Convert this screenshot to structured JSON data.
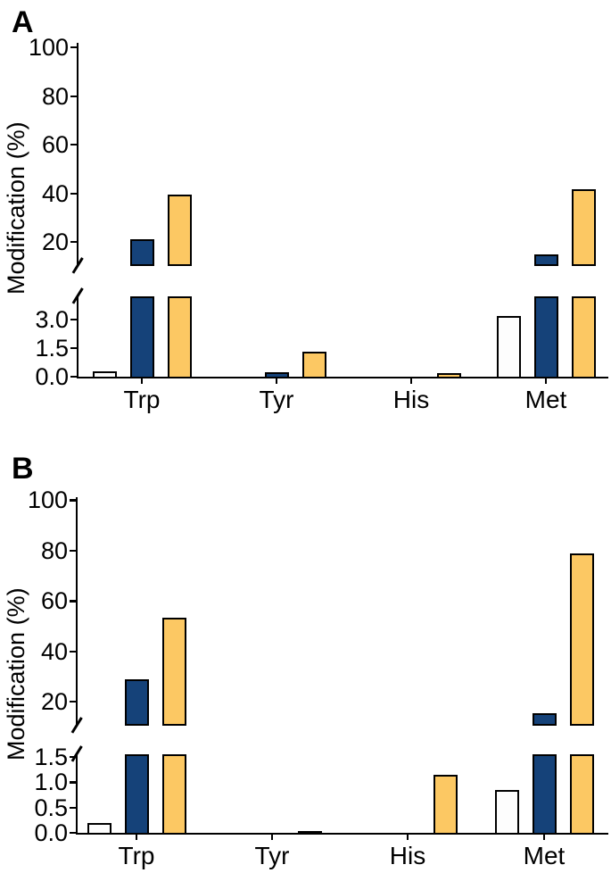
{
  "figure": {
    "panels": [
      {
        "label": "A",
        "y_axis_label": "Modification (%)",
        "upper_tick_labels": [
          "100",
          "80",
          "60",
          "40",
          "20"
        ],
        "lower_tick_labels": [
          "3.0",
          "1.5",
          "0.0"
        ],
        "categories": [
          "Trp",
          "Tyr",
          "His",
          "Met"
        ]
      },
      {
        "label": "B",
        "y_axis_label": "Modification (%)",
        "upper_tick_labels": [
          "100",
          "80",
          "60",
          "40",
          "20"
        ],
        "lower_tick_labels": [
          "1.5",
          "1.0",
          "0.5",
          "0.0"
        ],
        "categories": [
          "Trp",
          "Tyr",
          "His",
          "Met"
        ]
      }
    ],
    "colors": {
      "bar_white": "#fdfdfd",
      "bar_navy": "#154279",
      "bar_orange": "#fcc863",
      "outline": "#000000"
    }
  },
  "chart_data": [
    {
      "type": "bar",
      "panel": "A",
      "title": "",
      "xlabel": "",
      "ylabel": "Modification (%)",
      "categories": [
        "Trp",
        "Tyr",
        "His",
        "Met"
      ],
      "series": [
        {
          "name": "white-bars",
          "color": "#fdfdfd",
          "values": [
            0.3,
            0,
            0,
            3.2
          ]
        },
        {
          "name": "navy-bars",
          "color": "#154279",
          "values": [
            21,
            0.25,
            0,
            15
          ]
        },
        {
          "name": "orange-bars",
          "color": "#fcc863",
          "values": [
            39.5,
            1.3,
            0.2,
            41.5
          ]
        }
      ],
      "axis": {
        "broken": true,
        "lower_ticks": [
          0.0,
          1.5,
          3.0
        ],
        "lower_visible_max": 4.2,
        "upper_ticks": [
          20,
          40,
          60,
          80,
          100
        ],
        "upper_range": [
          20,
          100
        ],
        "grid": false,
        "legend": "none"
      }
    },
    {
      "type": "bar",
      "panel": "B",
      "title": "",
      "xlabel": "",
      "ylabel": "Modification (%)",
      "categories": [
        "Trp",
        "Tyr",
        "His",
        "Met"
      ],
      "series": [
        {
          "name": "white-bars",
          "color": "#fdfdfd",
          "values": [
            0.2,
            0,
            0,
            0.85
          ]
        },
        {
          "name": "navy-bars",
          "color": "#154279",
          "values": [
            29,
            0,
            0,
            15.5
          ]
        },
        {
          "name": "orange-bars",
          "color": "#fcc863",
          "values": [
            53.5,
            0.03,
            1.15,
            79
          ]
        }
      ],
      "axis": {
        "broken": true,
        "lower_ticks": [
          0.0,
          0.5,
          1.0,
          1.5
        ],
        "lower_visible_max": 1.55,
        "upper_ticks": [
          20,
          40,
          60,
          80,
          100
        ],
        "upper_range": [
          20,
          100
        ],
        "grid": false,
        "legend": "none"
      }
    }
  ]
}
